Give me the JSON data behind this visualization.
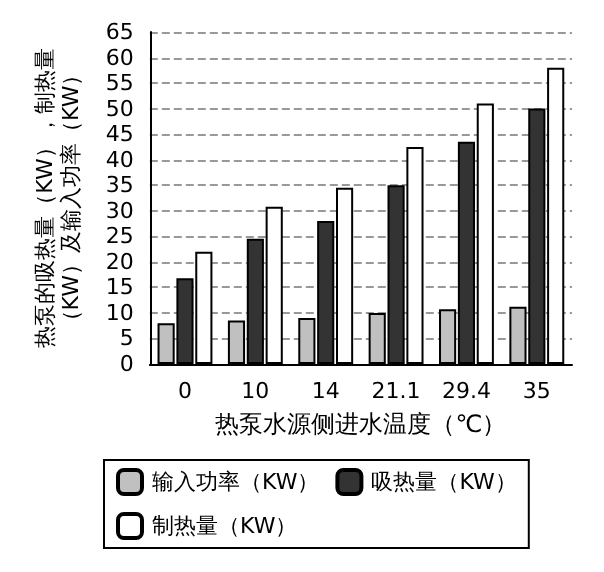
{
  "chart_data": {
    "type": "bar",
    "xlabel": "热泵水源侧进水温度（℃）",
    "ylabel": "热泵的吸热量（KW），制热量（KW）及输入功率（KW）",
    "categories": [
      "0",
      "10",
      "14",
      "21.1",
      "29.4",
      "35"
    ],
    "series": [
      {
        "name": "输入功率（KW）",
        "color": "#c0c0c0",
        "values": [
          8,
          8.5,
          9,
          10,
          10.7,
          11.2
        ]
      },
      {
        "name": "吸热量（KW）",
        "color": "#333333",
        "values": [
          16.8,
          24.5,
          28,
          35,
          43.5,
          50
        ]
      },
      {
        "name": "制热量（KW）",
        "color": "#ffffff",
        "values": [
          22,
          30.8,
          34.5,
          42.5,
          51,
          58
        ]
      }
    ],
    "ylim": [
      0,
      65
    ],
    "yticks": [
      0,
      5,
      10,
      15,
      20,
      25,
      30,
      35,
      40,
      45,
      50,
      55,
      60,
      65
    ],
    "grid": "y",
    "legend": "bottom"
  }
}
